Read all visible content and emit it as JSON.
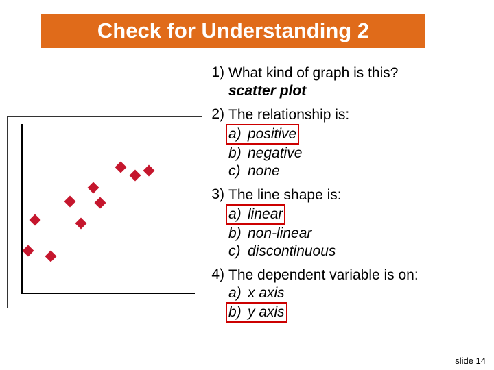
{
  "title": "Check for Understanding 2",
  "title_bg": "#e06b1a",
  "title_color": "#ffffff",
  "footer": "slide 14",
  "highlight_border": "#cc0000",
  "questions": [
    {
      "num": "1)",
      "text": "What kind of graph is this?",
      "answer": "scatter plot"
    },
    {
      "num": "2)",
      "text": "The relationship is:",
      "opts": [
        {
          "letter": "a)",
          "label": "positive",
          "hl": true
        },
        {
          "letter": "b)",
          "label": "negative",
          "hl": false
        },
        {
          "letter": "c)",
          "label": "none",
          "hl": false
        }
      ]
    },
    {
      "num": "3)",
      "text": "The line shape is:",
      "opts": [
        {
          "letter": "a)",
          "label": "linear",
          "hl": true
        },
        {
          "letter": "b)",
          "label": "non-linear",
          "hl": false
        },
        {
          "letter": "c)",
          "label": "discontinuous",
          "hl": false
        }
      ]
    },
    {
      "num": "4)",
      "text": "The dependent variable is on:",
      "opts": [
        {
          "letter": "a)",
          "label": "x axis",
          "hl": false
        },
        {
          "letter": "b)",
          "label": "y axis",
          "hl": true
        }
      ]
    }
  ],
  "scatter": {
    "type": "scatter",
    "marker_color": "#c5162d",
    "marker_size": 12,
    "marker_shape": "diamond",
    "axis_color": "#000000",
    "border_color": "#333333",
    "background_color": "#ffffff",
    "xlim": [
      0,
      10
    ],
    "ylim": [
      0,
      10
    ],
    "points": [
      {
        "x": 0.4,
        "y": 2.6
      },
      {
        "x": 0.8,
        "y": 4.4
      },
      {
        "x": 1.7,
        "y": 2.3
      },
      {
        "x": 2.8,
        "y": 5.5
      },
      {
        "x": 3.4,
        "y": 4.2
      },
      {
        "x": 4.1,
        "y": 6.3
      },
      {
        "x": 4.5,
        "y": 5.4
      },
      {
        "x": 5.7,
        "y": 7.5
      },
      {
        "x": 6.5,
        "y": 7.0
      },
      {
        "x": 7.3,
        "y": 7.3
      }
    ]
  }
}
